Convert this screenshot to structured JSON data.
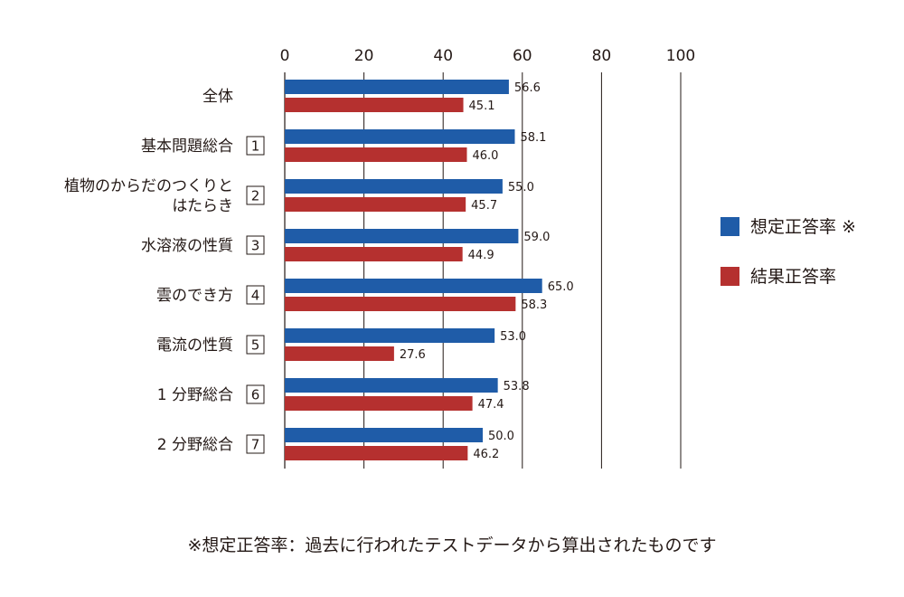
{
  "chart_data": {
    "type": "bar",
    "orientation": "horizontal",
    "xlim": [
      0,
      100
    ],
    "xticks": [
      0,
      20,
      40,
      60,
      80,
      100
    ],
    "categories": [
      {
        "lines": [
          "全体"
        ],
        "number": ""
      },
      {
        "lines": [
          "基本問題総合"
        ],
        "number": "1"
      },
      {
        "lines": [
          "植物のからだのつくりと",
          "はたらき"
        ],
        "number": "2"
      },
      {
        "lines": [
          "水溶液の性質"
        ],
        "number": "3"
      },
      {
        "lines": [
          "雲のでき方"
        ],
        "number": "4"
      },
      {
        "lines": [
          "電流の性質"
        ],
        "number": "5"
      },
      {
        "lines": [
          "1 分野総合"
        ],
        "number": "6"
      },
      {
        "lines": [
          "2 分野総合"
        ],
        "number": "7"
      }
    ],
    "series": [
      {
        "name": "想定正答率",
        "legend_label": "想定正答率 ※",
        "color": "#1f5ca8",
        "values": [
          56.6,
          58.1,
          55.0,
          59.0,
          65.0,
          53.0,
          53.8,
          50.0
        ],
        "labels": [
          "56.6",
          "58.1",
          "55.0",
          "59.0",
          "65.0",
          "53.0",
          "53.8",
          "50.0"
        ]
      },
      {
        "name": "結果正答率",
        "legend_label": "結果正答率",
        "color": "#b5302f",
        "values": [
          45.1,
          46.0,
          45.7,
          44.9,
          58.3,
          27.6,
          47.4,
          46.2
        ],
        "labels": [
          "45.1",
          "46.0",
          "45.7",
          "44.9",
          "58.3",
          "27.6",
          "47.4",
          "46.2"
        ]
      }
    ],
    "footnote": "※想定正答率：過去に行われたテストデータから算出されたものです",
    "grid": true,
    "legend_position": "right"
  }
}
